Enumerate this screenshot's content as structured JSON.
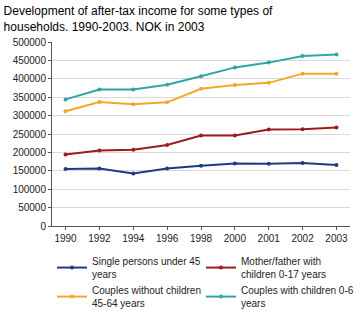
{
  "chart_data": {
    "type": "line",
    "title": "Development of after-tax income for some types of households. 1990-2003. NOK in 2003",
    "categories": [
      "1990",
      "1992",
      "1994",
      "1996",
      "1998",
      "2000",
      "2001",
      "2002",
      "2003"
    ],
    "series": [
      {
        "name": "Single persons under 45 years",
        "color": "#1c3a8c",
        "values": [
          155000,
          156000,
          143000,
          156000,
          164000,
          170000,
          169000,
          171000,
          166000
        ]
      },
      {
        "name": "Mother/father with children 0-17 years",
        "color": "#9e1b1b",
        "values": [
          194000,
          205000,
          207000,
          220000,
          246000,
          246000,
          262000,
          263000,
          268000
        ]
      },
      {
        "name": "Couples without children 45-64 years",
        "color": "#f4a62a",
        "values": [
          312000,
          337000,
          331000,
          336000,
          373000,
          383000,
          389000,
          414000,
          414000
        ]
      },
      {
        "name": "Couples with children 0-6 years",
        "color": "#2ea6a8",
        "values": [
          344000,
          371000,
          371000,
          384000,
          407000,
          431000,
          444000,
          462000,
          466000
        ]
      }
    ],
    "ylim": [
      0,
      500000
    ],
    "yticks": [
      0,
      50000,
      100000,
      150000,
      200000,
      250000,
      300000,
      350000,
      400000,
      450000,
      500000
    ],
    "grid": true,
    "legend": "bottom",
    "marker": "circle"
  }
}
